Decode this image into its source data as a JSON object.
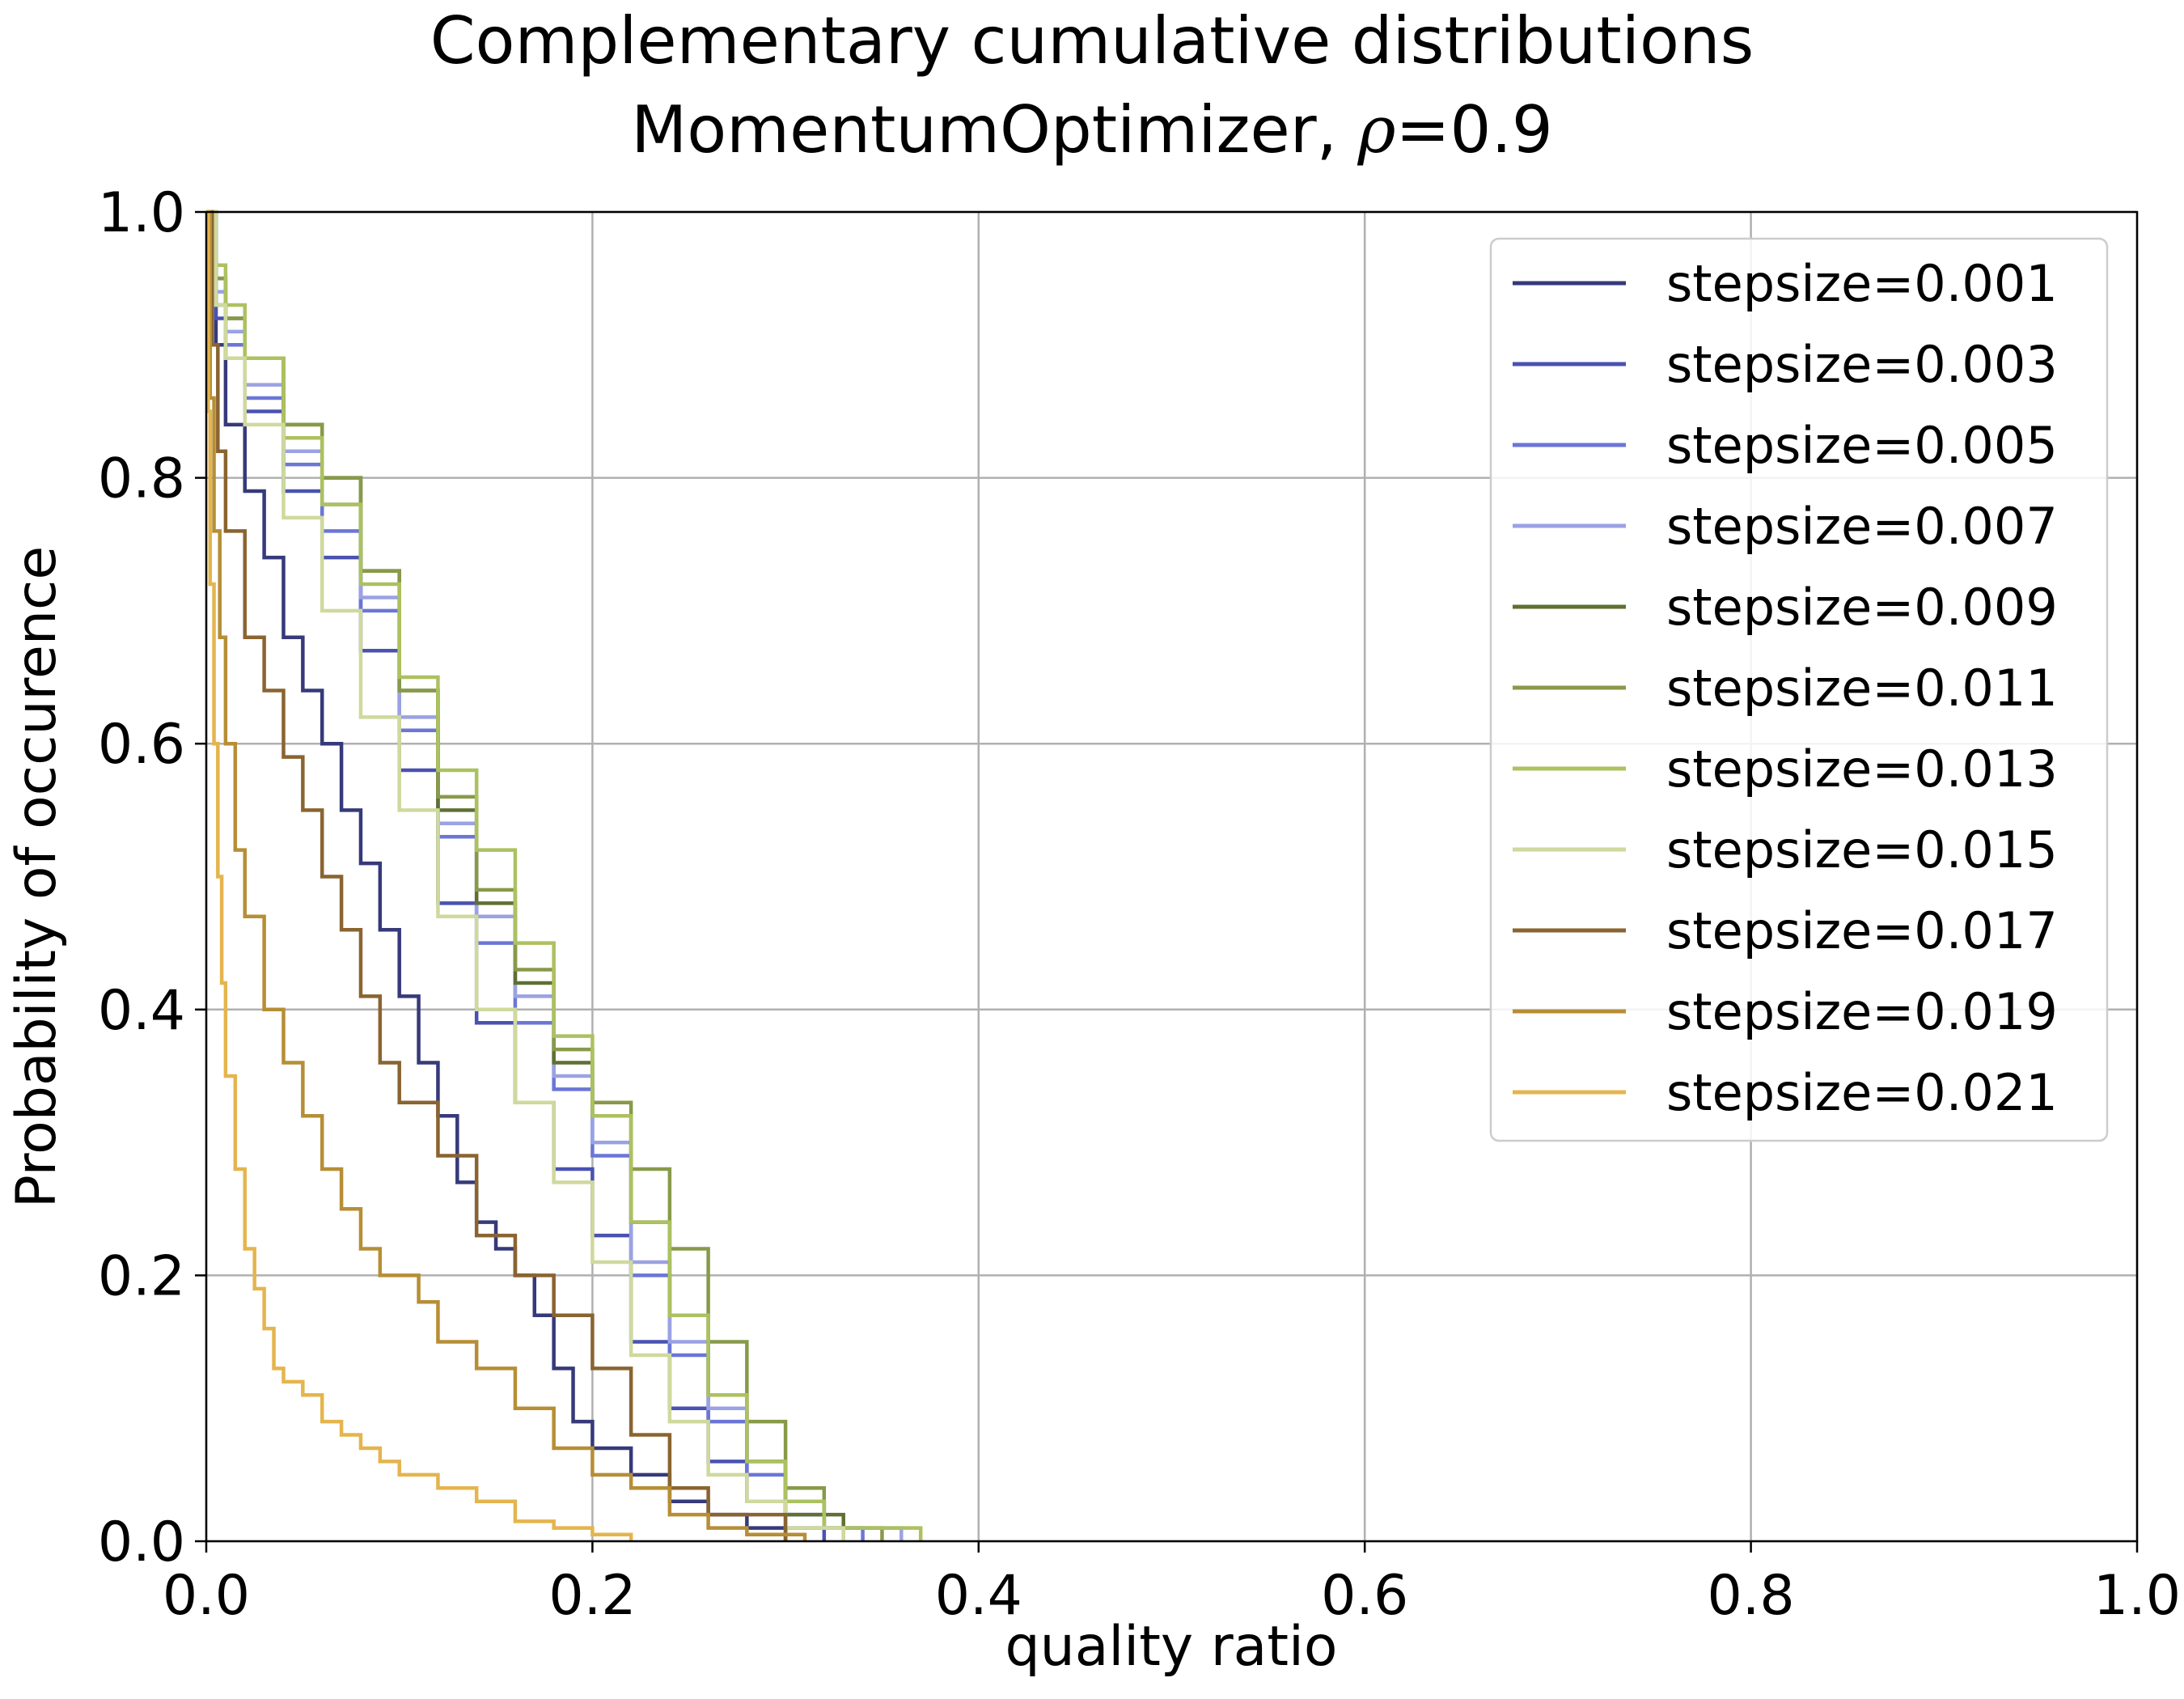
{
  "chart_data": {
    "type": "line",
    "title_line1": "Complementary cumulative distributions",
    "title_line2_prefix": "MomentumOptimizer, ",
    "title_line2_symbol": "ρ",
    "title_line2_suffix": "=0.9",
    "xlabel": "quality ratio",
    "ylabel": "Probability of occurence",
    "xlim": [
      0.0,
      1.0
    ],
    "ylim": [
      0.0,
      1.0
    ],
    "xticks": [
      "0.0",
      "0.2",
      "0.4",
      "0.6",
      "0.8",
      "1.0"
    ],
    "yticks": [
      "0.0",
      "0.2",
      "0.4",
      "0.6",
      "0.8",
      "1.0"
    ],
    "grid": true,
    "legend_position": "top-right",
    "series": [
      {
        "name": "stepsize=0.001",
        "color": "#363a7a",
        "x": [
          0,
          0.005,
          0.01,
          0.02,
          0.03,
          0.04,
          0.05,
          0.06,
          0.07,
          0.08,
          0.09,
          0.1,
          0.11,
          0.12,
          0.13,
          0.14,
          0.15,
          0.16,
          0.17,
          0.18,
          0.19,
          0.2,
          0.22,
          0.24,
          0.26,
          0.28,
          0.3
        ],
        "y": [
          1.0,
          0.9,
          0.84,
          0.79,
          0.74,
          0.68,
          0.64,
          0.6,
          0.55,
          0.51,
          0.46,
          0.41,
          0.36,
          0.32,
          0.27,
          0.24,
          0.22,
          0.2,
          0.17,
          0.13,
          0.09,
          0.07,
          0.05,
          0.03,
          0.02,
          0.01,
          0.0
        ]
      },
      {
        "name": "stepsize=0.003",
        "color": "#4a52b0",
        "x": [
          0,
          0.005,
          0.01,
          0.02,
          0.04,
          0.06,
          0.08,
          0.1,
          0.12,
          0.14,
          0.16,
          0.18,
          0.2,
          0.22,
          0.24,
          0.26,
          0.28,
          0.3,
          0.32
        ],
        "y": [
          1.0,
          0.92,
          0.89,
          0.85,
          0.79,
          0.74,
          0.67,
          0.58,
          0.48,
          0.39,
          0.33,
          0.28,
          0.23,
          0.15,
          0.1,
          0.06,
          0.03,
          0.01,
          0.0
        ]
      },
      {
        "name": "stepsize=0.005",
        "color": "#6b76d6",
        "x": [
          0,
          0.005,
          0.01,
          0.02,
          0.04,
          0.06,
          0.08,
          0.1,
          0.12,
          0.14,
          0.16,
          0.18,
          0.2,
          0.22,
          0.24,
          0.26,
          0.28,
          0.3,
          0.32,
          0.34
        ],
        "y": [
          1.0,
          0.93,
          0.9,
          0.86,
          0.81,
          0.76,
          0.7,
          0.61,
          0.53,
          0.45,
          0.39,
          0.34,
          0.29,
          0.2,
          0.14,
          0.09,
          0.05,
          0.02,
          0.01,
          0.0
        ]
      },
      {
        "name": "stepsize=0.007",
        "color": "#9ba2e3",
        "x": [
          0,
          0.005,
          0.01,
          0.02,
          0.04,
          0.06,
          0.08,
          0.1,
          0.12,
          0.14,
          0.16,
          0.18,
          0.2,
          0.22,
          0.24,
          0.26,
          0.28,
          0.3,
          0.32,
          0.36
        ],
        "y": [
          1.0,
          0.94,
          0.91,
          0.87,
          0.82,
          0.78,
          0.71,
          0.62,
          0.54,
          0.47,
          0.41,
          0.35,
          0.3,
          0.21,
          0.15,
          0.1,
          0.06,
          0.03,
          0.01,
          0.0
        ]
      },
      {
        "name": "stepsize=0.009",
        "color": "#5f7032",
        "x": [
          0,
          0.005,
          0.01,
          0.02,
          0.04,
          0.06,
          0.08,
          0.1,
          0.12,
          0.14,
          0.16,
          0.18,
          0.2,
          0.22,
          0.24,
          0.26,
          0.28,
          0.3,
          0.33
        ],
        "y": [
          1.0,
          0.95,
          0.92,
          0.89,
          0.84,
          0.8,
          0.73,
          0.64,
          0.55,
          0.48,
          0.42,
          0.36,
          0.32,
          0.24,
          0.17,
          0.11,
          0.06,
          0.02,
          0.0
        ]
      },
      {
        "name": "stepsize=0.011",
        "color": "#889a4a",
        "x": [
          0,
          0.005,
          0.01,
          0.02,
          0.04,
          0.06,
          0.08,
          0.1,
          0.12,
          0.14,
          0.16,
          0.18,
          0.2,
          0.22,
          0.24,
          0.26,
          0.28,
          0.3,
          0.32,
          0.35
        ],
        "y": [
          1.0,
          0.95,
          0.92,
          0.89,
          0.84,
          0.8,
          0.73,
          0.64,
          0.56,
          0.49,
          0.43,
          0.37,
          0.33,
          0.28,
          0.22,
          0.15,
          0.09,
          0.04,
          0.01,
          0.0
        ]
      },
      {
        "name": "stepsize=0.013",
        "color": "#acc160",
        "x": [
          0,
          0.005,
          0.01,
          0.02,
          0.04,
          0.06,
          0.08,
          0.1,
          0.12,
          0.14,
          0.16,
          0.18,
          0.2,
          0.22,
          0.24,
          0.26,
          0.28,
          0.3,
          0.32,
          0.37
        ],
        "y": [
          1.0,
          0.96,
          0.93,
          0.89,
          0.83,
          0.78,
          0.72,
          0.65,
          0.58,
          0.52,
          0.45,
          0.38,
          0.32,
          0.24,
          0.17,
          0.11,
          0.06,
          0.03,
          0.01,
          0.0
        ]
      },
      {
        "name": "stepsize=0.015",
        "color": "#cfd99d",
        "x": [
          0,
          0.005,
          0.01,
          0.02,
          0.04,
          0.06,
          0.08,
          0.1,
          0.12,
          0.14,
          0.16,
          0.18,
          0.2,
          0.22,
          0.24,
          0.26,
          0.28,
          0.3,
          0.33
        ],
        "y": [
          1.0,
          0.93,
          0.89,
          0.84,
          0.77,
          0.7,
          0.62,
          0.55,
          0.47,
          0.4,
          0.33,
          0.27,
          0.21,
          0.14,
          0.09,
          0.05,
          0.03,
          0.01,
          0.0
        ]
      },
      {
        "name": "stepsize=0.017",
        "color": "#8a6430",
        "x": [
          0,
          0.003,
          0.006,
          0.01,
          0.02,
          0.03,
          0.04,
          0.05,
          0.06,
          0.07,
          0.08,
          0.09,
          0.1,
          0.12,
          0.14,
          0.16,
          0.18,
          0.2,
          0.22,
          0.24,
          0.26,
          0.3
        ],
        "y": [
          1.0,
          0.9,
          0.82,
          0.76,
          0.68,
          0.64,
          0.59,
          0.55,
          0.5,
          0.46,
          0.41,
          0.36,
          0.33,
          0.29,
          0.23,
          0.2,
          0.17,
          0.13,
          0.08,
          0.04,
          0.02,
          0.0
        ]
      },
      {
        "name": "stepsize=0.019",
        "color": "#b68e36",
        "x": [
          0,
          0.002,
          0.004,
          0.007,
          0.01,
          0.015,
          0.02,
          0.03,
          0.04,
          0.05,
          0.06,
          0.07,
          0.08,
          0.09,
          0.1,
          0.11,
          0.12,
          0.14,
          0.16,
          0.18,
          0.2,
          0.22,
          0.24,
          0.26,
          0.28,
          0.31
        ],
        "y": [
          1.0,
          0.86,
          0.76,
          0.68,
          0.6,
          0.52,
          0.47,
          0.4,
          0.36,
          0.32,
          0.28,
          0.25,
          0.22,
          0.2,
          0.2,
          0.18,
          0.15,
          0.13,
          0.1,
          0.07,
          0.05,
          0.04,
          0.02,
          0.01,
          0.005,
          0.0
        ]
      },
      {
        "name": "stepsize=0.021",
        "color": "#e4b54e",
        "x": [
          0,
          0.001,
          0.002,
          0.004,
          0.006,
          0.008,
          0.01,
          0.015,
          0.02,
          0.025,
          0.03,
          0.035,
          0.04,
          0.05,
          0.06,
          0.07,
          0.08,
          0.09,
          0.1,
          0.12,
          0.14,
          0.16,
          0.18,
          0.2,
          0.22
        ],
        "y": [
          1.0,
          0.85,
          0.72,
          0.6,
          0.5,
          0.42,
          0.35,
          0.28,
          0.22,
          0.19,
          0.16,
          0.13,
          0.12,
          0.11,
          0.09,
          0.08,
          0.07,
          0.06,
          0.05,
          0.04,
          0.03,
          0.015,
          0.01,
          0.005,
          0.0
        ]
      }
    ]
  }
}
